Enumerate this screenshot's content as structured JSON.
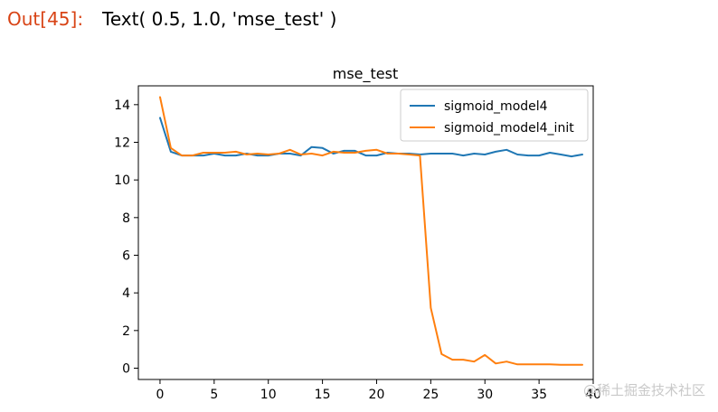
{
  "output_cell": {
    "prompt": "Out[45]:",
    "text": "Text( 0.5, 1.0, 'mse_test' )"
  },
  "watermark": "@稀土掘金技术社区",
  "chart_data": {
    "type": "line",
    "title": "mse_test",
    "xlabel": "",
    "ylabel": "",
    "xlim": [
      -2,
      40
    ],
    "ylim": [
      -0.6,
      15.0
    ],
    "x_ticks": [
      0,
      5,
      10,
      15,
      20,
      25,
      30,
      35,
      40
    ],
    "y_ticks": [
      0,
      2,
      4,
      6,
      8,
      10,
      12,
      14
    ],
    "grid": false,
    "legend_position": "top-right",
    "x": [
      0,
      1,
      2,
      3,
      4,
      5,
      6,
      7,
      8,
      9,
      10,
      11,
      12,
      13,
      14,
      15,
      16,
      17,
      18,
      19,
      20,
      21,
      22,
      23,
      24,
      25,
      26,
      27,
      28,
      29,
      30,
      31,
      32,
      33,
      34,
      35,
      36,
      37,
      38,
      39
    ],
    "series": [
      {
        "name": "sigmoid_model4",
        "color": "#1f77b4",
        "values": [
          13.3,
          11.5,
          11.3,
          11.3,
          11.3,
          11.4,
          11.3,
          11.3,
          11.4,
          11.3,
          11.3,
          11.4,
          11.4,
          11.3,
          11.75,
          11.7,
          11.4,
          11.55,
          11.55,
          11.3,
          11.3,
          11.45,
          11.4,
          11.4,
          11.35,
          11.4,
          11.4,
          11.4,
          11.3,
          11.4,
          11.35,
          11.5,
          11.6,
          11.35,
          11.3,
          11.3,
          11.45,
          11.35,
          11.25,
          11.35
        ]
      },
      {
        "name": "sigmoid_model4_init",
        "color": "#ff7f0e",
        "values": [
          14.4,
          11.7,
          11.3,
          11.3,
          11.45,
          11.45,
          11.45,
          11.5,
          11.35,
          11.4,
          11.35,
          11.4,
          11.6,
          11.35,
          11.4,
          11.3,
          11.5,
          11.45,
          11.45,
          11.55,
          11.6,
          11.4,
          11.4,
          11.35,
          11.3,
          3.2,
          0.75,
          0.45,
          0.45,
          0.35,
          0.7,
          0.25,
          0.35,
          0.2,
          0.2,
          0.2,
          0.2,
          0.18,
          0.18,
          0.18
        ]
      }
    ]
  }
}
